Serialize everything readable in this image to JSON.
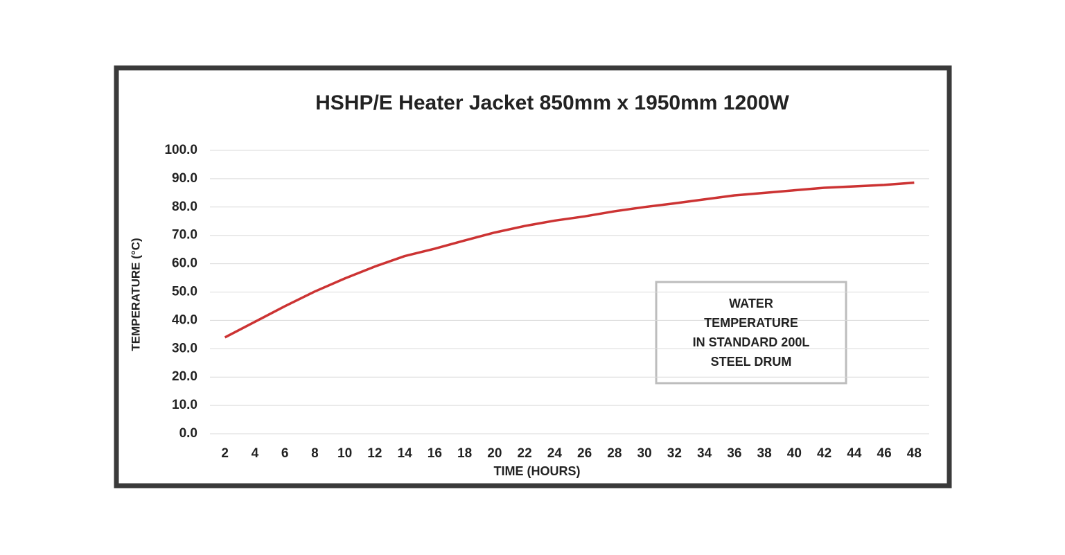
{
  "chart_data": {
    "type": "line",
    "title": "HSHP/E Heater Jacket 850mm x 1950mm 1200W",
    "x_label": "TIME (HOURS)",
    "y_label": "TEMPERATURE (°C)",
    "annotation": [
      "WATER",
      "TEMPERATURE",
      "IN STANDARD 200L",
      "STEEL DRUM"
    ],
    "categories": [
      2,
      4,
      6,
      8,
      10,
      12,
      14,
      16,
      18,
      20,
      22,
      24,
      26,
      28,
      30,
      32,
      34,
      36,
      38,
      40,
      42,
      44,
      46,
      48
    ],
    "values": [
      34.0,
      39.5,
      45.0,
      50.2,
      54.8,
      59.0,
      62.7,
      65.3,
      68.2,
      71.0,
      73.3,
      75.2,
      76.7,
      78.5,
      80.0,
      81.3,
      82.7,
      84.1,
      85.0,
      85.9,
      86.8,
      87.3,
      87.8,
      88.6
    ],
    "color": "#cc3333",
    "ylim": [
      0,
      100
    ],
    "yticks": [
      {
        "value": 0,
        "label": "0.0"
      },
      {
        "value": 10,
        "label": "10.0"
      },
      {
        "value": 20,
        "label": "20.0"
      },
      {
        "value": 30,
        "label": "30.0"
      },
      {
        "value": 40,
        "label": "40.0"
      },
      {
        "value": 50,
        "label": "50.0"
      },
      {
        "value": 60,
        "label": "60.0"
      },
      {
        "value": 70,
        "label": "70.0"
      },
      {
        "value": 80,
        "label": "80.0"
      },
      {
        "value": 90,
        "label": "90.0"
      },
      {
        "value": 100,
        "label": "100.0"
      }
    ],
    "grid": true
  }
}
